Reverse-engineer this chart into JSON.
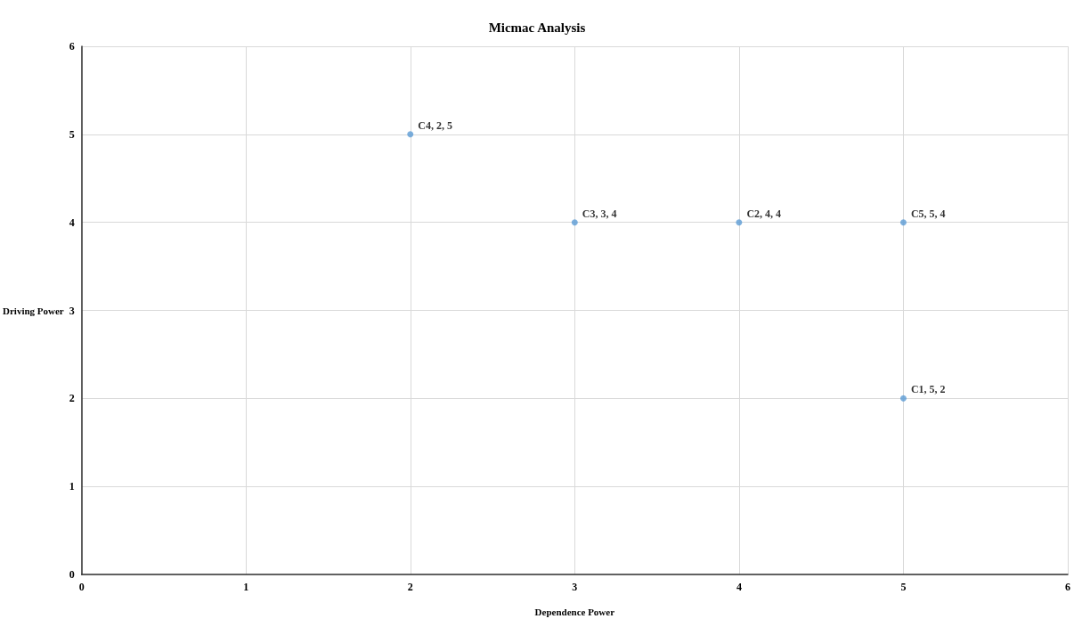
{
  "chart_data": {
    "type": "scatter",
    "title": "Micmac Analysis",
    "xlabel": "Dependence Power",
    "ylabel": "Driving Power",
    "x": [
      5,
      4,
      3,
      2,
      5
    ],
    "values": [
      2,
      4,
      4,
      5,
      4
    ],
    "value_labels": [
      "C1, 5, 2",
      "C2, 4, 4",
      "C3, 3, 4",
      "C4, 2, 5",
      "C5, 5, 4"
    ],
    "color": "#5b9bd5",
    "marker": "circle",
    "xlim": [
      0,
      6
    ],
    "xticks": [
      0,
      1,
      2,
      3,
      4,
      5,
      6
    ],
    "ylim": [
      0,
      6
    ],
    "yticks": [
      0,
      1,
      2,
      3,
      4,
      5,
      6
    ],
    "grid": true
  }
}
